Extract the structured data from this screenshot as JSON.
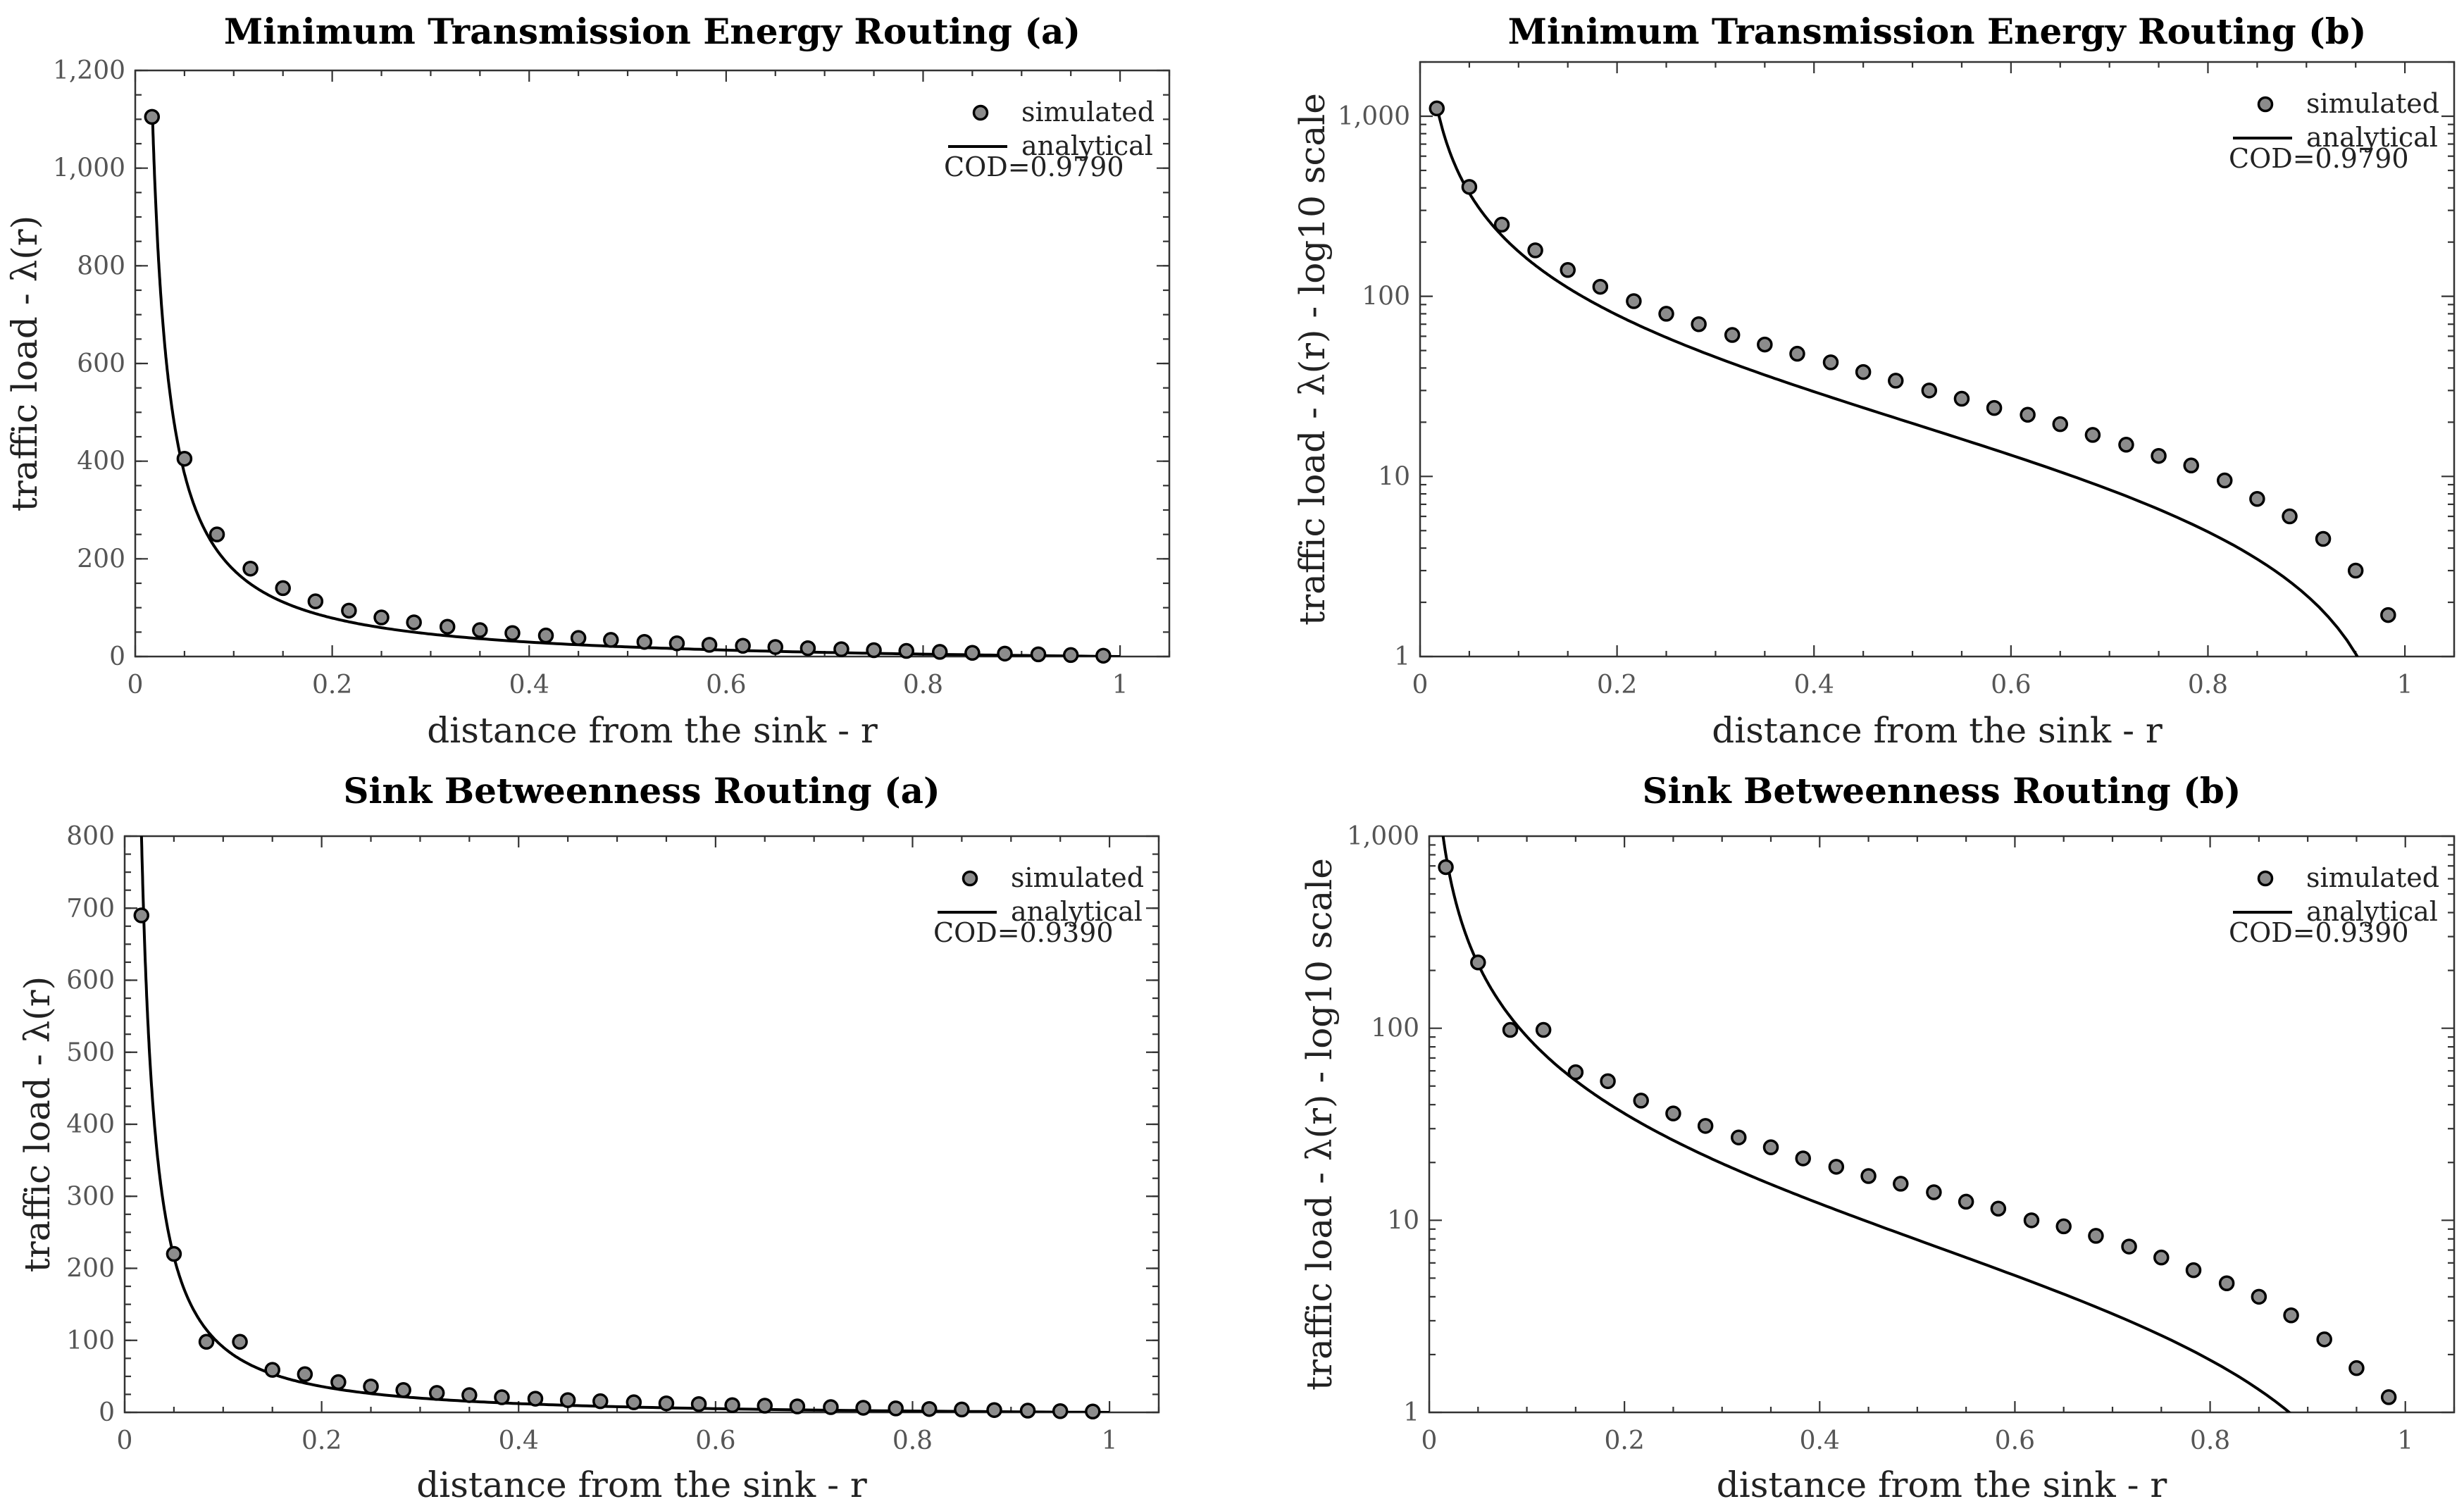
{
  "chart_data": [
    {
      "type": "scatter",
      "title": "Minimum Transmission Energy Routing (a)",
      "xlabel": "distance from the sink - r",
      "ylabel": "traffic load - λ(r)",
      "yscale": "linear",
      "xlim": [
        0,
        1.05
      ],
      "ylim": [
        0,
        1200
      ],
      "xticks": [
        0,
        0.2,
        0.4,
        0.6,
        0.8,
        1
      ],
      "xtick_labels": [
        "0",
        "0.2",
        "0.4",
        "0.6",
        "0.8",
        "1"
      ],
      "yticks": [
        0,
        200,
        400,
        600,
        800,
        1000,
        1200
      ],
      "ytick_labels": [
        "0",
        "200",
        "400",
        "600",
        "800",
        "1,000",
        "1,200"
      ],
      "legend": [
        "simulated",
        "analytical"
      ],
      "legend_position": "top-right",
      "annotation": "COD=0.9790",
      "series": [
        {
          "name": "simulated",
          "x": [
            0.017,
            0.05,
            0.083,
            0.117,
            0.15,
            0.183,
            0.217,
            0.25,
            0.283,
            0.317,
            0.35,
            0.383,
            0.417,
            0.45,
            0.483,
            0.517,
            0.55,
            0.583,
            0.617,
            0.65,
            0.683,
            0.717,
            0.75,
            0.783,
            0.817,
            0.85,
            0.883,
            0.917,
            0.95,
            0.983
          ],
          "y": [
            1105,
            405,
            250,
            180,
            140,
            113,
            94,
            80,
            70,
            61,
            54,
            48,
            43,
            38,
            34,
            30,
            27,
            24,
            22,
            19.5,
            17,
            15,
            13,
            11.5,
            9.5,
            7.5,
            6,
            4.5,
            3,
            1.7
          ]
        },
        {
          "name": "analytical",
          "curve": "a/r - b",
          "x_range": [
            0.0175,
            1.0
          ]
        }
      ]
    },
    {
      "type": "scatter",
      "title": "Minimum Transmission Energy Routing (b)",
      "xlabel": "distance from the sink - r",
      "ylabel": "traffic load - λ(r) - log10 scale",
      "yscale": "log",
      "xlim": [
        0,
        1.05
      ],
      "ylim": [
        1,
        2000
      ],
      "xticks": [
        0,
        0.2,
        0.4,
        0.6,
        0.8,
        1
      ],
      "xtick_labels": [
        "0",
        "0.2",
        "0.4",
        "0.6",
        "0.8",
        "1"
      ],
      "yticks": [
        1,
        10,
        100,
        1000
      ],
      "ytick_labels": [
        "1",
        "10",
        "100",
        "1,000"
      ],
      "legend": [
        "simulated",
        "analytical"
      ],
      "legend_position": "top-right",
      "annotation": "COD=0.9790",
      "series": [
        {
          "name": "simulated",
          "x": [
            0.017,
            0.05,
            0.083,
            0.117,
            0.15,
            0.183,
            0.217,
            0.25,
            0.283,
            0.317,
            0.35,
            0.383,
            0.417,
            0.45,
            0.483,
            0.517,
            0.55,
            0.583,
            0.617,
            0.65,
            0.683,
            0.717,
            0.75,
            0.783,
            0.817,
            0.85,
            0.883,
            0.917,
            0.95,
            0.983
          ],
          "y": [
            1105,
            405,
            250,
            180,
            140,
            113,
            94,
            80,
            70,
            61,
            54,
            48,
            43,
            38,
            34,
            30,
            27,
            24,
            22,
            19.5,
            17,
            15,
            13,
            11.5,
            9.5,
            7.5,
            6,
            4.5,
            3,
            1.7
          ]
        },
        {
          "name": "analytical",
          "curve": "a/r - b",
          "x_range": [
            0.0175,
            1.0
          ]
        }
      ]
    },
    {
      "type": "scatter",
      "title": "Sink Betweenness Routing (a)",
      "xlabel": "distance from the sink - r",
      "ylabel": "traffic load - λ(r)",
      "yscale": "linear",
      "xlim": [
        0,
        1.05
      ],
      "ylim": [
        0,
        800
      ],
      "xticks": [
        0,
        0.2,
        0.4,
        0.6,
        0.8,
        1
      ],
      "xtick_labels": [
        "0",
        "0.2",
        "0.4",
        "0.6",
        "0.8",
        "1"
      ],
      "yticks": [
        0,
        100,
        200,
        300,
        400,
        500,
        600,
        700,
        800
      ],
      "ytick_labels": [
        "0",
        "100",
        "200",
        "300",
        "400",
        "500",
        "600",
        "700",
        "800"
      ],
      "legend": [
        "simulated",
        "analytical"
      ],
      "legend_position": "top-right",
      "annotation": "COD=0.9390",
      "series": [
        {
          "name": "simulated",
          "x": [
            0.017,
            0.05,
            0.083,
            0.117,
            0.15,
            0.183,
            0.217,
            0.25,
            0.283,
            0.317,
            0.35,
            0.383,
            0.417,
            0.45,
            0.483,
            0.517,
            0.55,
            0.583,
            0.617,
            0.65,
            0.683,
            0.717,
            0.75,
            0.783,
            0.817,
            0.85,
            0.883,
            0.917,
            0.95,
            0.983
          ],
          "y": [
            690,
            220,
            98,
            98,
            59,
            53,
            42,
            36,
            31,
            27,
            24,
            21,
            19,
            17,
            15.5,
            14,
            12.5,
            11.5,
            10,
            9.3,
            8.3,
            7.3,
            6.4,
            5.5,
            4.7,
            4,
            3.2,
            2.4,
            1.7,
            1.2
          ]
        },
        {
          "name": "analytical",
          "curve": "a/r^1.2 - b",
          "x_range": [
            0.0125,
            1.0
          ]
        }
      ]
    },
    {
      "type": "scatter",
      "title": "Sink Betweenness Routing (b)",
      "xlabel": "distance from the sink - r",
      "ylabel": "traffic load - λ(r) - log10 scale",
      "yscale": "log",
      "xlim": [
        0,
        1.05
      ],
      "ylim": [
        1,
        1000
      ],
      "xticks": [
        0,
        0.2,
        0.4,
        0.6,
        0.8,
        1
      ],
      "xtick_labels": [
        "0",
        "0.2",
        "0.4",
        "0.6",
        "0.8",
        "1"
      ],
      "yticks": [
        1,
        10,
        100,
        1000
      ],
      "ytick_labels": [
        "1",
        "10",
        "100",
        "1,000"
      ],
      "legend": [
        "simulated",
        "analytical"
      ],
      "legend_position": "top-right",
      "annotation": "COD=0.9390",
      "series": [
        {
          "name": "simulated",
          "x": [
            0.017,
            0.05,
            0.083,
            0.117,
            0.15,
            0.183,
            0.217,
            0.25,
            0.283,
            0.317,
            0.35,
            0.383,
            0.417,
            0.45,
            0.483,
            0.517,
            0.55,
            0.583,
            0.617,
            0.65,
            0.683,
            0.717,
            0.75,
            0.783,
            0.817,
            0.85,
            0.883,
            0.917,
            0.95,
            0.983
          ],
          "y": [
            690,
            220,
            98,
            98,
            59,
            53,
            42,
            36,
            31,
            27,
            24,
            21,
            19,
            17,
            15.5,
            14,
            12.5,
            11.5,
            10,
            9.3,
            8.3,
            7.3,
            6.4,
            5.5,
            4.7,
            4,
            3.2,
            2.4,
            1.7,
            1.2
          ]
        },
        {
          "name": "analytical",
          "curve": "a/r^1.2 - b",
          "x_range": [
            0.0125,
            1.0
          ]
        }
      ]
    }
  ]
}
